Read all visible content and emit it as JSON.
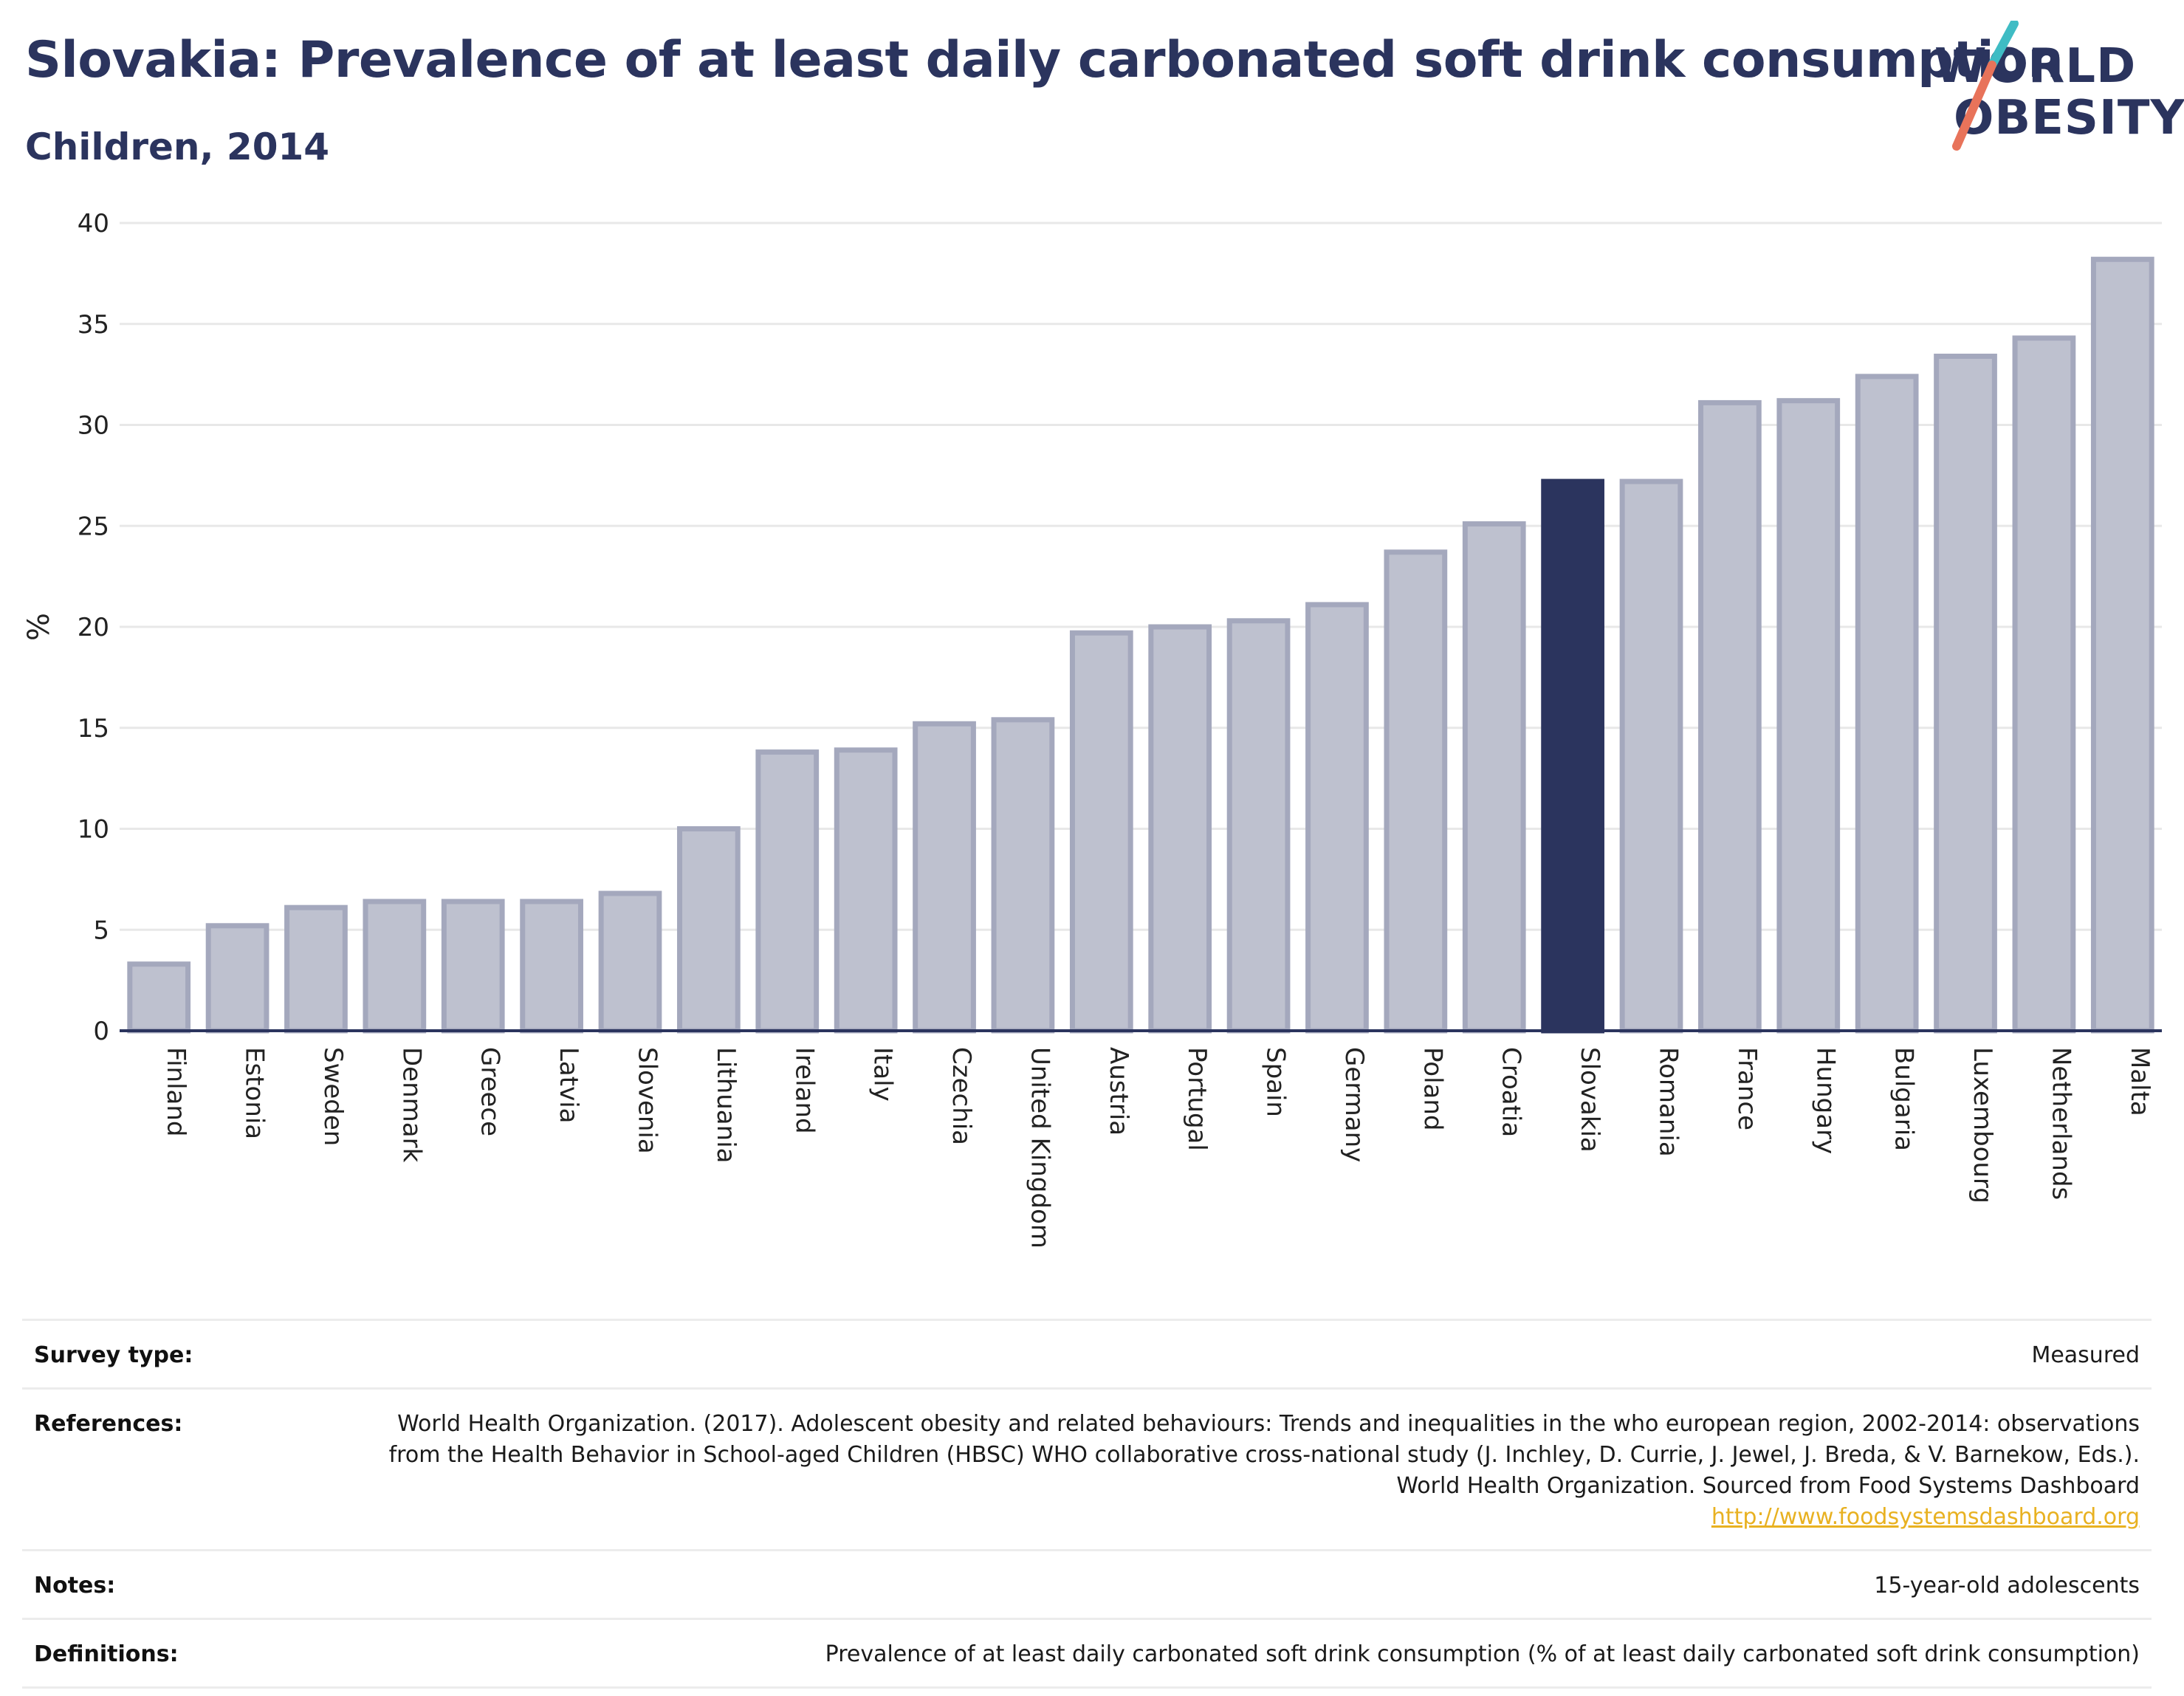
{
  "header": {
    "title": "Slovakia: Prevalence of at least daily carbonated soft drink consumption",
    "subtitle": "Children, 2014"
  },
  "logo": {
    "line1": "WORLD",
    "line2": "OBESITY",
    "slash_colors": [
      "#3fbcc4",
      "#e8735a"
    ]
  },
  "chart_data": {
    "type": "bar",
    "ylabel": "%",
    "ylim": [
      0,
      40
    ],
    "yticks": [
      0,
      5,
      10,
      15,
      20,
      25,
      30,
      35,
      40
    ],
    "grid": true,
    "highlight": "Slovakia",
    "colors": {
      "bar": "#bec1cf",
      "bar_edge": "#a4a8bd",
      "highlight": "#2b345e",
      "grid": "#e8e8e8"
    },
    "categories": [
      "Finland",
      "Estonia",
      "Sweden",
      "Denmark",
      "Greece",
      "Latvia",
      "Slovenia",
      "Lithuania",
      "Ireland",
      "Italy",
      "Czechia",
      "United Kingdom",
      "Austria",
      "Portugal",
      "Spain",
      "Germany",
      "Poland",
      "Croatia",
      "Slovakia",
      "Romania",
      "France",
      "Hungary",
      "Bulgaria",
      "Luxembourg",
      "Netherlands",
      "Malta"
    ],
    "values": [
      3.3,
      5.2,
      6.1,
      6.4,
      6.4,
      6.4,
      6.8,
      10.0,
      13.8,
      13.9,
      15.2,
      15.4,
      19.7,
      20.0,
      20.3,
      21.1,
      23.7,
      25.1,
      27.2,
      27.2,
      31.1,
      31.2,
      32.4,
      33.4,
      34.3,
      38.2
    ]
  },
  "info": {
    "survey_label": "Survey type:",
    "survey_value": "Measured",
    "references_label": "References:",
    "references_value": "World Health Organization. (2017). Adolescent obesity and related behaviours: Trends and inequalities in the who european region, 2002-2014: observations from the Health Behavior in School-aged Children (HBSC) WHO collaborative cross-national study (J. Inchley, D. Currie, J. Jewel, J. Breda, & V. Barnekow, Eds.). World Health Organization. Sourced from Food Systems Dashboard",
    "references_link": "http://www.foodsystemsdashboard.org",
    "notes_label": "Notes:",
    "notes_value": "15-year-old adolescents",
    "definitions_label": "Definitions:",
    "definitions_value": "Prevalence of at least daily carbonated soft drink consumption (% of at least daily carbonated soft drink consumption)"
  }
}
